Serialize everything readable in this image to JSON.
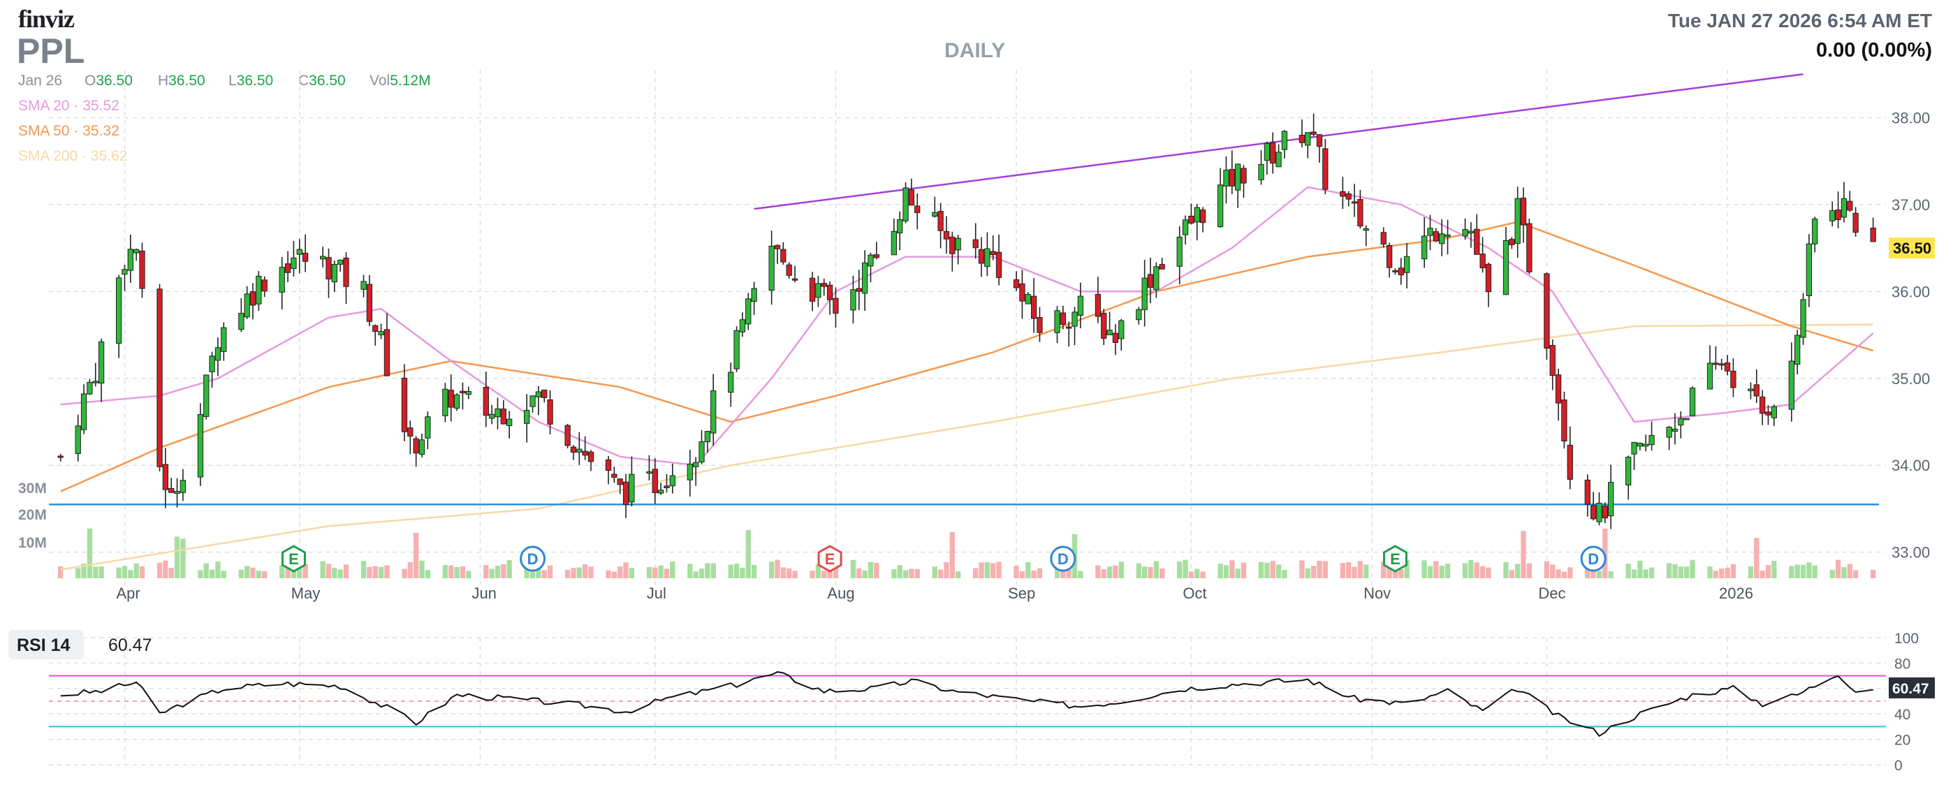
{
  "header": {
    "logo": "finviz",
    "ticker": "PPL",
    "timeframe": "DAILY",
    "datetime": "Tue JAN 27 2026 6:54 AM ET",
    "change": "0.00 (0.00%)",
    "ohlc": {
      "date": "Jan 26",
      "o_label": "O",
      "o": "36.50",
      "h_label": "H",
      "h": "36.50",
      "l_label": "L",
      "l": "36.50",
      "c_label": "C",
      "c": "36.50",
      "vol_label": "Vol",
      "vol": "5.12M"
    },
    "sma20": {
      "label": "SMA 20",
      "sep": "·",
      "value": "35.52"
    },
    "sma50": {
      "label": "SMA 50",
      "sep": "·",
      "value": "35.32"
    },
    "sma200": {
      "label": "SMA 200",
      "sep": "·",
      "value": "35.62"
    }
  },
  "colors": {
    "up": "#2fb83a",
    "down": "#d41f27",
    "sma20": "#e79ae0",
    "sma50": "#f5984e",
    "sma200": "#f6d9a6",
    "trendline": "#a63ddb",
    "support": "#2b8fe3",
    "vol_up": "#a7dea0",
    "vol_down": "#f7b0b0",
    "price_tag": "#ffe54d",
    "rsi_line": "#111111",
    "rsi_high": "#d454d4",
    "rsi_low": "#3cb8d8"
  },
  "chart_data": [
    {
      "type": "candlestick",
      "title": "PPL",
      "price_range": [
        32.7,
        38.55
      ],
      "y_ticks": [
        "33.00",
        "34.00",
        "35.00",
        "36.00",
        "37.00",
        "38.00"
      ],
      "x_labels": [
        "Apr",
        "May",
        "Jun",
        "Jul",
        "Aug",
        "Sep",
        "Oct",
        "Nov",
        "Dec",
        "2026"
      ],
      "last_price": "36.50",
      "volume_axis_labels": [
        "30M",
        "20M",
        "10M"
      ],
      "price_points": [
        [
          "2025-03-21",
          34.1
        ],
        [
          "2025-03-27",
          35.1
        ],
        [
          "2025-04-01",
          36.4
        ],
        [
          "2025-04-03",
          36.5
        ],
        [
          "2025-04-07",
          34.0
        ],
        [
          "2025-04-09",
          33.6
        ],
        [
          "2025-04-14",
          34.6
        ],
        [
          "2025-04-17",
          35.5
        ],
        [
          "2025-04-24",
          36.1
        ],
        [
          "2025-04-30",
          36.4
        ],
        [
          "2025-05-06",
          36.3
        ],
        [
          "2025-05-12",
          36.0
        ],
        [
          "2025-05-15",
          35.4
        ],
        [
          "2025-05-20",
          34.2
        ],
        [
          "2025-05-27",
          34.8
        ],
        [
          "2025-06-03",
          34.6
        ],
        [
          "2025-06-11",
          34.8
        ],
        [
          "2025-06-18",
          34.2
        ],
        [
          "2025-06-25",
          33.7
        ],
        [
          "2025-07-01",
          33.8
        ],
        [
          "2025-07-08",
          34.2
        ],
        [
          "2025-07-14",
          35.2
        ],
        [
          "2025-07-21",
          36.5
        ],
        [
          "2025-07-25",
          36.2
        ],
        [
          "2025-08-01",
          35.8
        ],
        [
          "2025-08-08",
          36.4
        ],
        [
          "2025-08-13",
          37.1
        ],
        [
          "2025-08-20",
          36.6
        ],
        [
          "2025-08-28",
          36.4
        ],
        [
          "2025-09-05",
          35.6
        ],
        [
          "2025-09-12",
          35.8
        ],
        [
          "2025-09-18",
          35.5
        ],
        [
          "2025-09-25",
          36.3
        ],
        [
          "2025-10-01",
          36.8
        ],
        [
          "2025-10-08",
          37.3
        ],
        [
          "2025-10-15",
          37.6
        ],
        [
          "2025-10-21",
          37.9
        ],
        [
          "2025-10-24",
          37.3
        ],
        [
          "2025-10-30",
          36.8
        ],
        [
          "2025-11-06",
          36.3
        ],
        [
          "2025-11-13",
          36.8
        ],
        [
          "2025-11-18",
          36.7
        ],
        [
          "2025-11-21",
          35.9
        ],
        [
          "2025-11-26",
          36.9
        ],
        [
          "2025-12-02",
          35.2
        ],
        [
          "2025-12-05",
          34.0
        ],
        [
          "2025-12-10",
          33.4
        ],
        [
          "2025-12-16",
          34.1
        ],
        [
          "2025-12-23",
          34.5
        ],
        [
          "2025-12-31",
          35.2
        ],
        [
          "2026-01-07",
          34.6
        ],
        [
          "2026-01-12",
          35.1
        ],
        [
          "2026-01-16",
          36.8
        ],
        [
          "2026-01-21",
          37.0
        ],
        [
          "2026-01-26",
          36.5
        ]
      ],
      "sma20": [
        [
          "2025-03-21",
          34.7
        ],
        [
          "2025-04-07",
          34.8
        ],
        [
          "2025-04-17",
          35.0
        ],
        [
          "2025-05-06",
          35.7
        ],
        [
          "2025-05-15",
          35.8
        ],
        [
          "2025-05-27",
          35.2
        ],
        [
          "2025-06-11",
          34.5
        ],
        [
          "2025-06-25",
          34.1
        ],
        [
          "2025-07-08",
          34.0
        ],
        [
          "2025-07-21",
          35.0
        ],
        [
          "2025-08-01",
          36.0
        ],
        [
          "2025-08-13",
          36.4
        ],
        [
          "2025-08-28",
          36.4
        ],
        [
          "2025-09-12",
          36.0
        ],
        [
          "2025-09-25",
          36.0
        ],
        [
          "2025-10-08",
          36.5
        ],
        [
          "2025-10-21",
          37.2
        ],
        [
          "2025-11-06",
          37.0
        ],
        [
          "2025-11-21",
          36.5
        ],
        [
          "2025-12-02",
          36.0
        ],
        [
          "2025-12-16",
          34.5
        ],
        [
          "2025-12-31",
          34.6
        ],
        [
          "2026-01-12",
          34.7
        ],
        [
          "2026-01-26",
          35.52
        ]
      ],
      "sma50": [
        [
          "2025-03-21",
          33.7
        ],
        [
          "2025-04-07",
          34.2
        ],
        [
          "2025-05-06",
          34.9
        ],
        [
          "2025-05-27",
          35.2
        ],
        [
          "2025-06-25",
          34.9
        ],
        [
          "2025-07-14",
          34.5
        ],
        [
          "2025-08-01",
          34.8
        ],
        [
          "2025-08-28",
          35.3
        ],
        [
          "2025-09-25",
          36.0
        ],
        [
          "2025-10-21",
          36.4
        ],
        [
          "2025-11-13",
          36.6
        ],
        [
          "2025-11-26",
          36.8
        ],
        [
          "2025-12-16",
          36.3
        ],
        [
          "2026-01-12",
          35.6
        ],
        [
          "2026-01-26",
          35.32
        ]
      ],
      "sma200": [
        [
          "2025-03-21",
          32.8
        ],
        [
          "2025-05-06",
          33.3
        ],
        [
          "2025-06-11",
          33.5
        ],
        [
          "2025-07-14",
          34.0
        ],
        [
          "2025-08-28",
          34.5
        ],
        [
          "2025-10-08",
          35.0
        ],
        [
          "2025-11-13",
          35.3
        ],
        [
          "2025-12-16",
          35.6
        ],
        [
          "2026-01-26",
          35.62
        ]
      ],
      "trendline": [
        [
          "2025-07-18",
          36.95
        ],
        [
          "2026-01-14",
          38.5
        ]
      ],
      "support_line": 33.55,
      "events": [
        {
          "date": "2025-04-30",
          "label": "E"
        },
        {
          "date": "2025-06-10",
          "label": "D"
        },
        {
          "date": "2025-07-31",
          "label": "E"
        },
        {
          "date": "2025-09-09",
          "label": "D"
        },
        {
          "date": "2025-11-05",
          "label": "E"
        },
        {
          "date": "2025-12-09",
          "label": "D"
        }
      ]
    },
    {
      "type": "line",
      "title": "RSI 14",
      "current_value": "60.47",
      "y_ticks": [
        "100",
        "80",
        "60",
        "40",
        "20",
        "0"
      ],
      "ylim": [
        0,
        100
      ],
      "upper_band": 70,
      "lower_band": 30,
      "points": [
        [
          "2025-03-21",
          55
        ],
        [
          "2025-03-28",
          58
        ],
        [
          "2025-04-03",
          65
        ],
        [
          "2025-04-07",
          40
        ],
        [
          "2025-04-11",
          48
        ],
        [
          "2025-04-18",
          60
        ],
        [
          "2025-04-28",
          64
        ],
        [
          "2025-05-08",
          62
        ],
        [
          "2025-05-16",
          45
        ],
        [
          "2025-05-21",
          33
        ],
        [
          "2025-05-28",
          55
        ],
        [
          "2025-06-06",
          52
        ],
        [
          "2025-06-18",
          47
        ],
        [
          "2025-06-26",
          42
        ],
        [
          "2025-07-03",
          52
        ],
        [
          "2025-07-14",
          62
        ],
        [
          "2025-07-22",
          72
        ],
        [
          "2025-07-30",
          58
        ],
        [
          "2025-08-08",
          60
        ],
        [
          "2025-08-14",
          66
        ],
        [
          "2025-08-21",
          58
        ],
        [
          "2025-09-03",
          50
        ],
        [
          "2025-09-12",
          46
        ],
        [
          "2025-09-19",
          50
        ],
        [
          "2025-09-30",
          60
        ],
        [
          "2025-10-10",
          64
        ],
        [
          "2025-10-21",
          67
        ],
        [
          "2025-10-29",
          52
        ],
        [
          "2025-11-07",
          48
        ],
        [
          "2025-11-14",
          58
        ],
        [
          "2025-11-20",
          42
        ],
        [
          "2025-11-26",
          60
        ],
        [
          "2025-12-03",
          38
        ],
        [
          "2025-12-10",
          25
        ],
        [
          "2025-12-17",
          40
        ],
        [
          "2025-12-26",
          55
        ],
        [
          "2026-01-02",
          60
        ],
        [
          "2026-01-07",
          48
        ],
        [
          "2026-01-13",
          55
        ],
        [
          "2026-01-20",
          72
        ],
        [
          "2026-01-23",
          58
        ],
        [
          "2026-01-26",
          60.47
        ]
      ]
    }
  ]
}
